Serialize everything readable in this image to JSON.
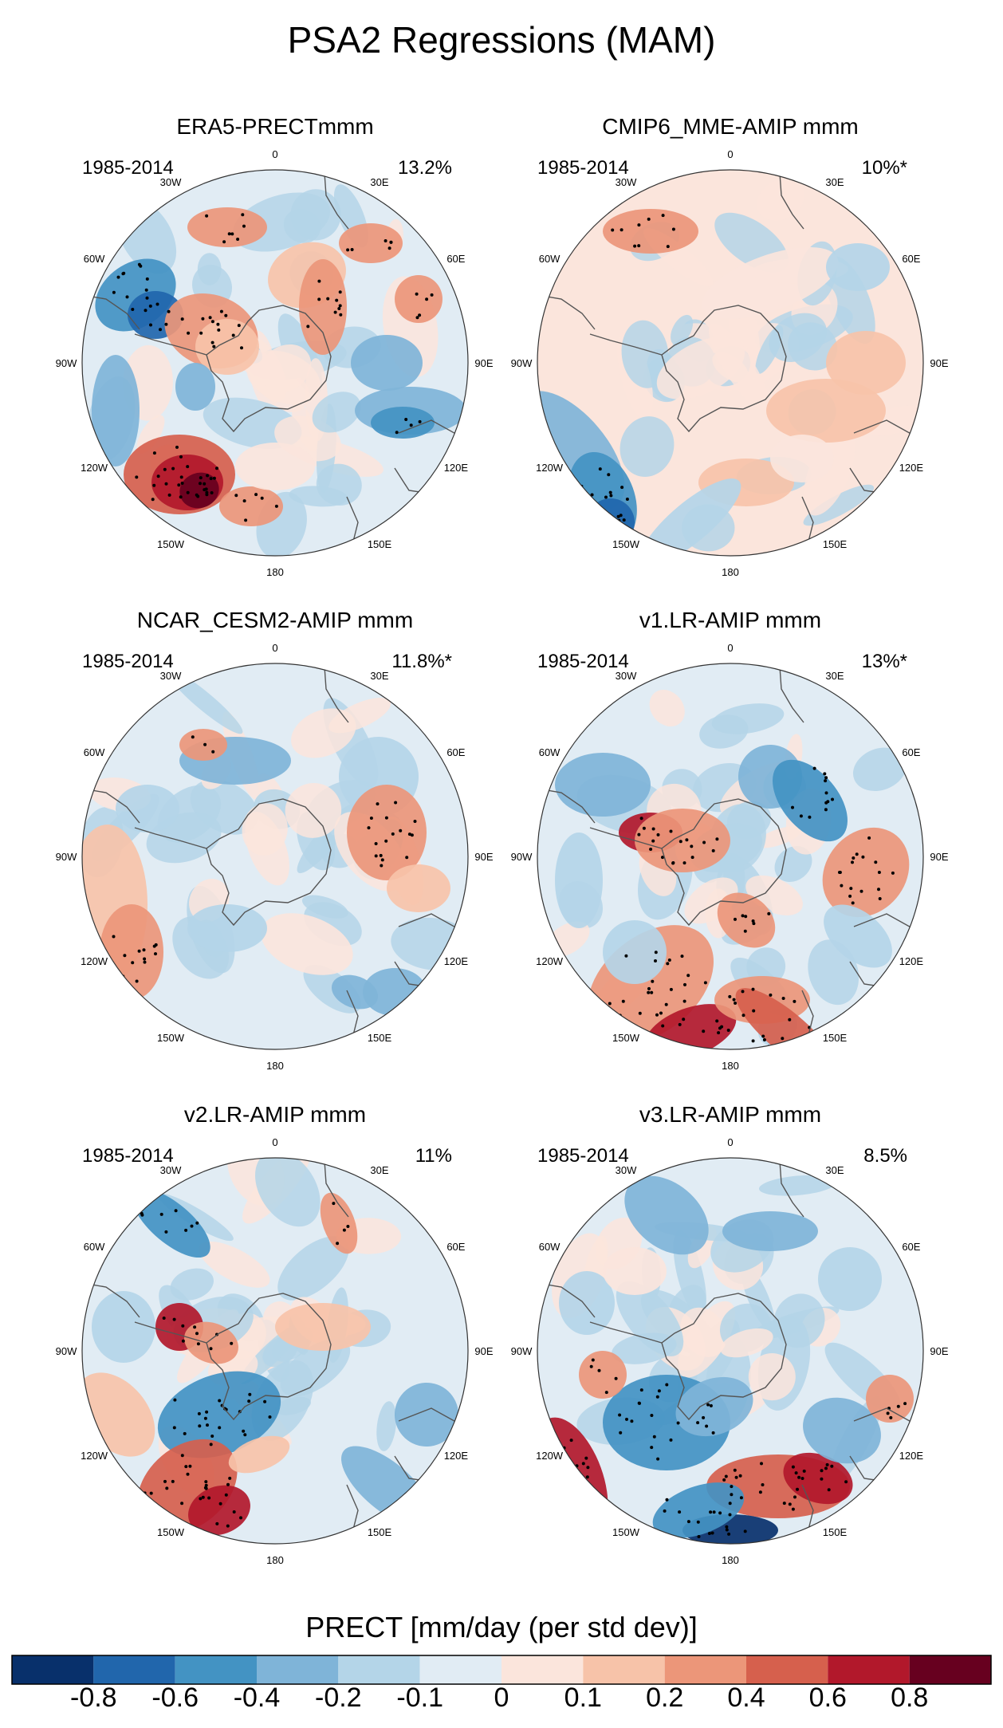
{
  "title": "PSA2 Regressions (MAM)",
  "chart_data": {
    "type": "heatmap",
    "projection": "south-polar-stereographic",
    "variable": "PRECT",
    "colorbar_label": "PRECT [mm/day (per std dev)]",
    "colorbar_ticks": [
      "-0.8",
      "-0.6",
      "-0.4",
      "-0.2",
      "-0.1",
      "0",
      "0.1",
      "0.2",
      "0.4",
      "0.6",
      "0.8"
    ],
    "colorbar_colors": [
      "#08306b",
      "#2166ac",
      "#4393c3",
      "#7fb4d8",
      "#b4d5e8",
      "#e1ecf4",
      "#fbe5dc",
      "#f7c3a9",
      "#ec9679",
      "#d6604d",
      "#b2182b",
      "#67001f"
    ],
    "lon_labels": [
      "0",
      "30E",
      "60E",
      "90E",
      "120E",
      "150E",
      "180",
      "150W",
      "120W",
      "90W",
      "60W",
      "30W"
    ],
    "panels": [
      {
        "name": "ERA5-PRECTmmm",
        "period": "1985-2014",
        "pct": "13.2%"
      },
      {
        "name": "CMIP6_MME-AMIP  mmm",
        "period": "1985-2014",
        "pct": "10%*"
      },
      {
        "name": "NCAR_CESM2-AMIP  mmm",
        "period": "1985-2014",
        "pct": "11.8%*"
      },
      {
        "name": "v1.LR-AMIP  mmm",
        "period": "1985-2014",
        "pct": "13%*"
      },
      {
        "name": "v2.LR-AMIP  mmm",
        "period": "1985-2014",
        "pct": "11%"
      },
      {
        "name": "v3.LR-AMIP  mmm",
        "period": "1985-2014",
        "pct": "8.5%"
      }
    ]
  }
}
